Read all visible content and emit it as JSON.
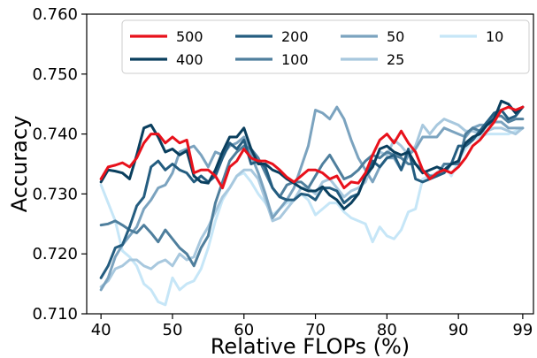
{
  "chart_data": {
    "type": "line",
    "title": "",
    "xlabel": "Relative FLOPs (%)",
    "ylabel": "Accuracy",
    "xlim": [
      38,
      100.5
    ],
    "ylim": [
      0.71,
      0.76
    ],
    "xticks": [
      40,
      50,
      60,
      70,
      80,
      90,
      99
    ],
    "xtick_labels": [
      "40",
      "50",
      "60",
      "70",
      "80",
      "90",
      "99"
    ],
    "yticks": [
      0.71,
      0.72,
      0.73,
      0.74,
      0.75,
      0.76
    ],
    "ytick_labels": [
      "0.710",
      "0.720",
      "0.730",
      "0.740",
      "0.750",
      "0.760"
    ],
    "grid": false,
    "legend": {
      "placement": "top-center",
      "columns": 4
    },
    "x": [
      40,
      41,
      42,
      43,
      44,
      45,
      46,
      47,
      48,
      49,
      50,
      51,
      52,
      53,
      54,
      55,
      56,
      57,
      58,
      59,
      60,
      61,
      62,
      63,
      64,
      65,
      66,
      67,
      68,
      69,
      70,
      71,
      72,
      73,
      74,
      75,
      76,
      77,
      78,
      79,
      80,
      81,
      82,
      83,
      84,
      85,
      86,
      87,
      88,
      89,
      90,
      91,
      92,
      93,
      94,
      95,
      96,
      97,
      98,
      99
    ],
    "series": [
      {
        "name": "500",
        "color": "#e8111b",
        "width": 3.0,
        "values": [
          0.7325,
          0.7345,
          0.7348,
          0.7352,
          0.7345,
          0.736,
          0.7385,
          0.74,
          0.74,
          0.7385,
          0.7395,
          0.7385,
          0.739,
          0.7335,
          0.734,
          0.734,
          0.733,
          0.731,
          0.7345,
          0.7355,
          0.7375,
          0.736,
          0.7355,
          0.7355,
          0.735,
          0.734,
          0.7328,
          0.732,
          0.733,
          0.734,
          0.734,
          0.7335,
          0.7325,
          0.733,
          0.731,
          0.732,
          0.7318,
          0.7335,
          0.7365,
          0.739,
          0.74,
          0.7385,
          0.7405,
          0.7385,
          0.737,
          0.734,
          0.7325,
          0.7335,
          0.734,
          0.7335,
          0.7345,
          0.736,
          0.738,
          0.739,
          0.7405,
          0.742,
          0.744,
          0.7445,
          0.744,
          0.7445
        ]
      },
      {
        "name": "400",
        "color": "#0a3f5e",
        "width": 3.0,
        "values": [
          0.732,
          0.734,
          0.7338,
          0.7335,
          0.7325,
          0.7365,
          0.741,
          0.7415,
          0.7395,
          0.737,
          0.7375,
          0.7365,
          0.7372,
          0.733,
          0.732,
          0.7318,
          0.734,
          0.737,
          0.7395,
          0.7395,
          0.741,
          0.7375,
          0.735,
          0.735,
          0.734,
          0.7335,
          0.7325,
          0.7318,
          0.731,
          0.7305,
          0.7305,
          0.7312,
          0.7298,
          0.729,
          0.7275,
          0.7285,
          0.73,
          0.733,
          0.7345,
          0.7375,
          0.738,
          0.737,
          0.7365,
          0.737,
          0.735,
          0.7335,
          0.734,
          0.7345,
          0.734,
          0.735,
          0.7355,
          0.7385,
          0.7395,
          0.74,
          0.7415,
          0.7425,
          0.7455,
          0.745,
          0.7435,
          0.7445
        ]
      },
      {
        "name": "200",
        "color": "#245d80",
        "width": 3.0,
        "values": [
          0.716,
          0.718,
          0.721,
          0.7215,
          0.7245,
          0.728,
          0.7295,
          0.7345,
          0.7355,
          0.734,
          0.735,
          0.734,
          0.7335,
          0.732,
          0.733,
          0.732,
          0.733,
          0.736,
          0.7385,
          0.7375,
          0.739,
          0.735,
          0.7355,
          0.7345,
          0.731,
          0.7295,
          0.729,
          0.729,
          0.73,
          0.7298,
          0.729,
          0.731,
          0.731,
          0.7305,
          0.7285,
          0.7295,
          0.73,
          0.733,
          0.7355,
          0.7345,
          0.736,
          0.7365,
          0.734,
          0.7375,
          0.7325,
          0.732,
          0.7325,
          0.733,
          0.7335,
          0.735,
          0.738,
          0.738,
          0.739,
          0.7405,
          0.742,
          0.7435,
          0.744,
          0.7425,
          0.743,
          0.7445
        ]
      },
      {
        "name": "100",
        "color": "#4f7f9d",
        "width": 3.0,
        "values": [
          0.7248,
          0.725,
          0.7255,
          0.7248,
          0.724,
          0.7235,
          0.7248,
          0.7235,
          0.722,
          0.724,
          0.7225,
          0.721,
          0.72,
          0.718,
          0.721,
          0.723,
          0.7285,
          0.732,
          0.7355,
          0.737,
          0.738,
          0.7375,
          0.736,
          0.7335,
          0.731,
          0.7295,
          0.7315,
          0.732,
          0.732,
          0.731,
          0.733,
          0.735,
          0.7365,
          0.7345,
          0.7325,
          0.733,
          0.734,
          0.7355,
          0.7365,
          0.736,
          0.737,
          0.7365,
          0.736,
          0.735,
          0.735,
          0.734,
          0.733,
          0.733,
          0.735,
          0.735,
          0.735,
          0.74,
          0.741,
          0.7405,
          0.742,
          0.743,
          0.743,
          0.742,
          0.7425,
          0.7425
        ]
      },
      {
        "name": "50",
        "color": "#7ba3bf",
        "width": 3.0,
        "values": [
          0.714,
          0.716,
          0.7195,
          0.7215,
          0.723,
          0.7245,
          0.7275,
          0.729,
          0.731,
          0.7315,
          0.7335,
          0.737,
          0.7375,
          0.738,
          0.7365,
          0.7345,
          0.737,
          0.7365,
          0.738,
          0.7385,
          0.7395,
          0.7365,
          0.7335,
          0.73,
          0.726,
          0.7275,
          0.729,
          0.731,
          0.7345,
          0.738,
          0.744,
          0.7435,
          0.7425,
          0.7445,
          0.7425,
          0.739,
          0.736,
          0.734,
          0.732,
          0.7345,
          0.736,
          0.736,
          0.734,
          0.7365,
          0.7375,
          0.7395,
          0.7395,
          0.7395,
          0.741,
          0.7405,
          0.74,
          0.7395,
          0.741,
          0.7415,
          0.7415,
          0.742,
          0.742,
          0.741,
          0.741,
          0.741
        ]
      },
      {
        "name": "25",
        "color": "#a8c8de",
        "width": 3.0,
        "values": [
          0.7145,
          0.7155,
          0.7175,
          0.718,
          0.719,
          0.719,
          0.718,
          0.7175,
          0.7185,
          0.719,
          0.718,
          0.72,
          0.719,
          0.7195,
          0.7225,
          0.7245,
          0.727,
          0.7295,
          0.731,
          0.733,
          0.734,
          0.734,
          0.7325,
          0.729,
          0.7255,
          0.726,
          0.7275,
          0.729,
          0.731,
          0.731,
          0.73,
          0.732,
          0.7325,
          0.731,
          0.7295,
          0.7305,
          0.731,
          0.732,
          0.735,
          0.737,
          0.7365,
          0.739,
          0.738,
          0.7365,
          0.738,
          0.7415,
          0.74,
          0.7415,
          0.7425,
          0.742,
          0.7415,
          0.7405,
          0.7405,
          0.74,
          0.7405,
          0.741,
          0.741,
          0.7405,
          0.74,
          0.741
        ]
      },
      {
        "name": "10",
        "color": "#c6e6f7",
        "width": 3.0,
        "values": [
          0.7315,
          0.7285,
          0.7255,
          0.7205,
          0.7195,
          0.718,
          0.715,
          0.714,
          0.712,
          0.7115,
          0.716,
          0.714,
          0.715,
          0.7155,
          0.7175,
          0.721,
          0.7255,
          0.729,
          0.731,
          0.733,
          0.7335,
          0.732,
          0.73,
          0.7285,
          0.7265,
          0.7275,
          0.7285,
          0.729,
          0.73,
          0.729,
          0.7265,
          0.7275,
          0.7285,
          0.7285,
          0.727,
          0.726,
          0.7255,
          0.725,
          0.722,
          0.7245,
          0.723,
          0.7225,
          0.724,
          0.727,
          0.7275,
          0.7325,
          0.733,
          0.7335,
          0.735,
          0.733,
          0.7355,
          0.7375,
          0.739,
          0.7395,
          0.74,
          0.74,
          0.74,
          0.74,
          0.7405,
          0.741
        ]
      }
    ]
  }
}
